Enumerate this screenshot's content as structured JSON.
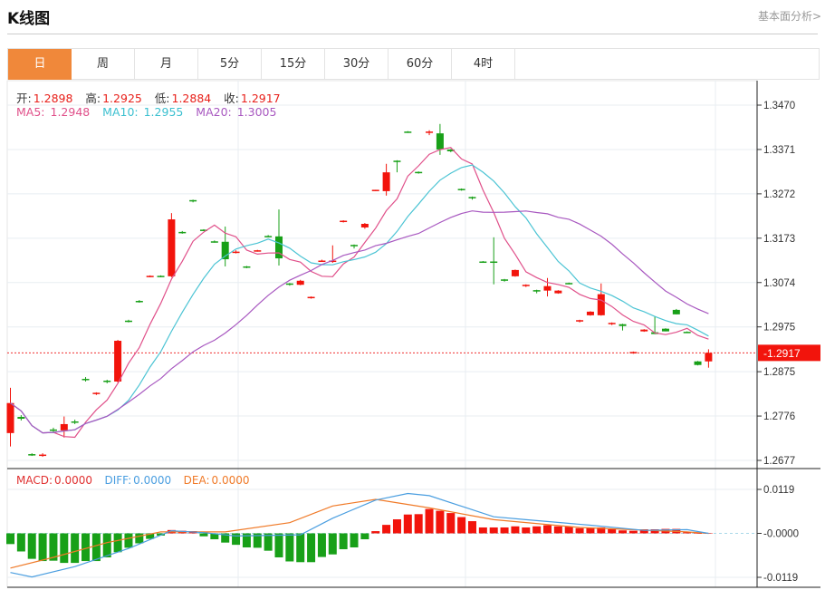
{
  "header": {
    "title": "K线图",
    "link": "基本面分析>"
  },
  "tabs": [
    {
      "label": "日",
      "active": true
    },
    {
      "label": "周"
    },
    {
      "label": "月"
    },
    {
      "label": "5分"
    },
    {
      "label": "15分"
    },
    {
      "label": "30分"
    },
    {
      "label": "60分"
    },
    {
      "label": "4时"
    }
  ],
  "ohlc": {
    "open_label": "开:",
    "open": "1.2898",
    "high_label": "高:",
    "high": "1.2925",
    "low_label": "低:",
    "low": "1.2884",
    "close_label": "收:",
    "close": "1.2917"
  },
  "ma": {
    "ma5_label": "MA5:",
    "ma5": "1.2948",
    "ma10_label": "MA10:",
    "ma10": "1.2955",
    "ma20_label": "MA20:",
    "ma20": "1.3005"
  },
  "macd_legend": {
    "macd_label": "MACD:",
    "macd": "0.0000",
    "diff_label": "DIFF:",
    "diff": "0.0000",
    "dea_label": "DEA:",
    "dea": "0.0000"
  },
  "colors": {
    "up": "#f2140c",
    "down": "#18a018",
    "ma5": "#e0508a",
    "ma10": "#4cc4d4",
    "ma20": "#a858c0",
    "diff": "#4a9ee0",
    "dea": "#f07a28",
    "accent": "#f0883a"
  },
  "chart_data": [
    {
      "type": "candlestick",
      "ylim": [
        1.2677,
        1.347
      ],
      "yticks": [
        "1.3470",
        "1.3371",
        "1.3272",
        "1.3173",
        "1.3074",
        "1.2975",
        "1.2875",
        "1.2776",
        "1.2677"
      ],
      "current_price": "1.2917",
      "grid": true,
      "candles_ohlc": [
        [
          1.2738,
          1.2839,
          1.2708,
          1.2805
        ],
        [
          1.2774,
          1.2778,
          1.2766,
          1.277
        ],
        [
          1.2691,
          1.2693,
          1.2687,
          1.2689
        ],
        [
          1.2688,
          1.2693,
          1.2685,
          1.269
        ],
        [
          1.2746,
          1.275,
          1.274,
          1.2744
        ],
        [
          1.2744,
          1.2775,
          1.2728,
          1.2758
        ],
        [
          1.2764,
          1.2768,
          1.2758,
          1.2762
        ],
        [
          1.2859,
          1.2863,
          1.2853,
          1.2857
        ],
        [
          1.2825,
          1.2829,
          1.2823,
          1.2828
        ],
        [
          1.2855,
          1.2857,
          1.2849,
          1.2853
        ],
        [
          1.2853,
          1.2946,
          1.2851,
          1.2944
        ],
        [
          1.2989,
          1.2991,
          1.2985,
          1.2987
        ],
        [
          1.3033,
          1.3035,
          1.3029,
          1.3031
        ],
        [
          1.3086,
          1.309,
          1.3086,
          1.3089
        ],
        [
          1.3089,
          1.309,
          1.3086,
          1.3087
        ],
        [
          1.3088,
          1.3229,
          1.3086,
          1.3215
        ],
        [
          1.3187,
          1.3189,
          1.3183,
          1.3185
        ],
        [
          1.3258,
          1.3259,
          1.3253,
          1.3255
        ],
        [
          1.3192,
          1.3193,
          1.3189,
          1.3191
        ],
        [
          1.3166,
          1.3168,
          1.3163,
          1.3165
        ],
        [
          1.3165,
          1.3199,
          1.311,
          1.3126
        ],
        [
          1.3141,
          1.3146,
          1.3139,
          1.3143
        ],
        [
          1.311,
          1.3111,
          1.3106,
          1.3107
        ],
        [
          1.3144,
          1.3147,
          1.3143,
          1.3146
        ],
        [
          1.3178,
          1.318,
          1.3175,
          1.3177
        ],
        [
          1.3177,
          1.3237,
          1.3112,
          1.3128
        ],
        [
          1.3072,
          1.3073,
          1.3067,
          1.3069
        ],
        [
          1.3069,
          1.308,
          1.3068,
          1.3078
        ],
        [
          1.304,
          1.3043,
          1.3038,
          1.3042
        ],
        [
          1.3121,
          1.3125,
          1.312,
          1.3123
        ],
        [
          1.3121,
          1.3157,
          1.3118,
          1.3123
        ],
        [
          1.321,
          1.3213,
          1.3208,
          1.3212
        ],
        [
          1.3158,
          1.3159,
          1.315,
          1.3155
        ],
        [
          1.3197,
          1.3207,
          1.3194,
          1.3205
        ],
        [
          1.3279,
          1.3281,
          1.3278,
          1.3281
        ],
        [
          1.3278,
          1.3339,
          1.3268,
          1.332
        ],
        [
          1.3346,
          1.3347,
          1.332,
          1.3343
        ],
        [
          1.3411,
          1.3412,
          1.3408,
          1.3409
        ],
        [
          1.3321,
          1.3322,
          1.3317,
          1.3319
        ],
        [
          1.3408,
          1.3414,
          1.3403,
          1.3411
        ],
        [
          1.3407,
          1.3428,
          1.3359,
          1.3371
        ],
        [
          1.3371,
          1.3372,
          1.3365,
          1.3367
        ],
        [
          1.3283,
          1.3284,
          1.3279,
          1.3281
        ],
        [
          1.3265,
          1.3266,
          1.3259,
          1.3263
        ],
        [
          1.3121,
          1.3122,
          1.3119,
          1.312
        ],
        [
          1.3121,
          1.3175,
          1.307,
          1.312
        ],
        [
          1.3081,
          1.3082,
          1.3076,
          1.3079
        ],
        [
          1.3088,
          1.3103,
          1.3087,
          1.3102
        ],
        [
          1.3067,
          1.307,
          1.3064,
          1.3069
        ],
        [
          1.3057,
          1.3058,
          1.305,
          1.3055
        ],
        [
          1.3056,
          1.3084,
          1.3043,
          1.3066
        ],
        [
          1.305,
          1.3057,
          1.3049,
          1.3056
        ],
        [
          1.3073,
          1.3074,
          1.307,
          1.3071
        ],
        [
          1.2988,
          1.2991,
          1.2985,
          1.299
        ],
        [
          1.3001,
          1.301,
          1.3,
          1.3009
        ],
        [
          1.3001,
          1.3072,
          1.3,
          1.3048
        ],
        [
          1.2982,
          1.2985,
          1.2979,
          1.2984
        ],
        [
          1.2981,
          1.2982,
          1.2967,
          1.2977
        ],
        [
          1.2916,
          1.292,
          1.2915,
          1.2919
        ],
        [
          1.2965,
          1.297,
          1.2964,
          1.2969
        ],
        [
          1.2963,
          1.2999,
          1.2959,
          1.2959
        ],
        [
          1.2971,
          1.2972,
          1.2965,
          1.2965
        ],
        [
          1.3013,
          1.3015,
          1.3003,
          1.3003
        ],
        [
          1.2964,
          1.2965,
          1.2962,
          1.2963
        ],
        [
          1.2898,
          1.2899,
          1.2889,
          1.289
        ],
        [
          1.2898,
          1.2925,
          1.2884,
          1.2917
        ]
      ],
      "series": [
        {
          "name": "MA5"
        },
        {
          "name": "MA10"
        },
        {
          "name": "MA20"
        }
      ]
    },
    {
      "type": "bar+line",
      "ylim": [
        -0.0119,
        0.0119
      ],
      "yticks": [
        "0.0119",
        "-0.0000",
        "-0.0119"
      ],
      "macd_hist": [
        -0.0029,
        -0.0049,
        -0.0069,
        -0.0075,
        -0.0074,
        -0.008,
        -0.008,
        -0.0075,
        -0.0075,
        -0.0065,
        -0.0051,
        -0.0039,
        -0.0027,
        -0.0015,
        -0.0006,
        0.0009,
        0.0007,
        0.0006,
        -0.0008,
        -0.0016,
        -0.0025,
        -0.0031,
        -0.0038,
        -0.0039,
        -0.0047,
        -0.0065,
        -0.0076,
        -0.0078,
        -0.0078,
        -0.0064,
        -0.0057,
        -0.0043,
        -0.0038,
        -0.0016,
        0.0006,
        0.0023,
        0.0038,
        0.0051,
        0.0052,
        0.0066,
        0.0061,
        0.0055,
        0.0044,
        0.0033,
        0.0016,
        0.0016,
        0.0016,
        0.0019,
        0.0016,
        0.0019,
        0.0022,
        0.0019,
        0.0018,
        0.0014,
        0.0016,
        0.0016,
        0.0011,
        0.0008,
        0.0007,
        0.0011,
        0.0011,
        0.0012,
        0.0012,
        0.0003,
        0.0,
        0.0
      ],
      "diff_points": [
        [
          0,
          -0.0106
        ],
        [
          2,
          -0.0118
        ],
        [
          6,
          -0.009
        ],
        [
          11,
          -0.0041
        ],
        [
          15,
          0.0007
        ],
        [
          18,
          0.0002
        ],
        [
          21,
          -0.0007
        ],
        [
          27,
          -0.0004
        ],
        [
          30,
          0.0041
        ],
        [
          34,
          0.009
        ],
        [
          37,
          0.0108
        ],
        [
          39,
          0.0102
        ],
        [
          45,
          0.0045
        ],
        [
          48,
          0.0037
        ],
        [
          54,
          0.0022
        ],
        [
          59,
          0.0008
        ],
        [
          63,
          0.001
        ],
        [
          65,
          0.0
        ]
      ],
      "dea_points": [
        [
          0,
          -0.0094
        ],
        [
          4,
          -0.0065
        ],
        [
          9,
          -0.0025
        ],
        [
          14,
          0.0004
        ],
        [
          20,
          0.0004
        ],
        [
          26,
          0.0029
        ],
        [
          30,
          0.0074
        ],
        [
          34,
          0.0092
        ],
        [
          39,
          0.0069
        ],
        [
          45,
          0.0037
        ],
        [
          53,
          0.0016
        ],
        [
          63,
          0.0004
        ],
        [
          65,
          0.0
        ]
      ]
    }
  ]
}
